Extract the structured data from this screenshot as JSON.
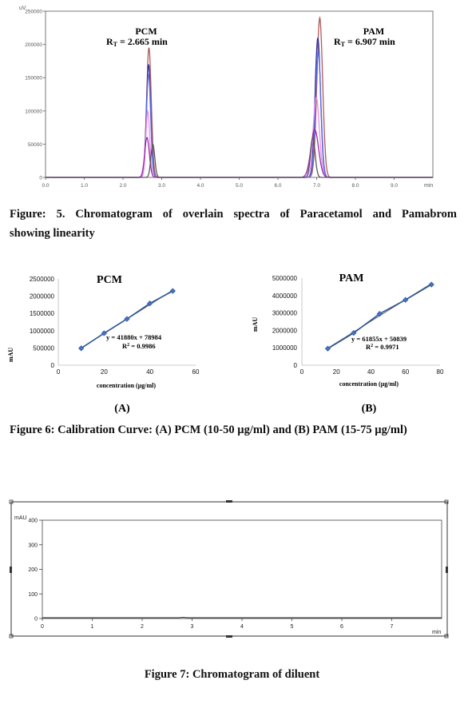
{
  "figure5": {
    "caption_line1": "Figure: 5. Chromatogram of overlain spectra of Paracetamol and Pamabrom",
    "caption_line2": "showing linearity",
    "unit_label": "uV",
    "x_unit": "min",
    "peaks": [
      {
        "name": "PCM",
        "rt_text": "R",
        "rt_sub": "T",
        "rt_value": "= 2.665 min"
      },
      {
        "name": "PAM",
        "rt_text": "R",
        "rt_sub": "T",
        "rt_value": "= 6.907 min"
      }
    ]
  },
  "figure6": {
    "panel_a_letter": "(A)",
    "panel_b_letter": "(B)",
    "caption": "Figure 6: Calibration Curve: (A) PCM (10-50 µg/ml) and (B) PAM (15-75 µg/ml)"
  },
  "figure7": {
    "y_unit": "mAU",
    "x_unit": "min",
    "caption": "Figure 7: Chromatogram of diluent"
  },
  "chart_data": [
    {
      "type": "line",
      "title": "",
      "xlabel": "min",
      "ylabel": "uV",
      "xlim": [
        0,
        10
      ],
      "ylim": [
        0,
        250000
      ],
      "xticks": [
        "0.0",
        "1.0",
        "2.0",
        "3.0",
        "4.0",
        "5.0",
        "6.0",
        "7.0",
        "8.0",
        "9.0"
      ],
      "yticks": [
        "0",
        "50000",
        "100000",
        "150000",
        "200000",
        "250000"
      ],
      "annotations": [
        "PCM",
        "RT = 2.665 min",
        "PAM",
        "RT = 6.907 min"
      ],
      "series": [
        {
          "color": "#b05a5a",
          "peaks": [
            {
              "rt": 2.67,
              "h": 195000,
              "w": 0.06
            },
            {
              "rt": 7.08,
              "h": 240000,
              "w": 0.075
            }
          ]
        },
        {
          "color": "#2d2d9c",
          "peaks": [
            {
              "rt": 2.66,
              "h": 170000,
              "w": 0.055
            },
            {
              "rt": 7.03,
              "h": 210000,
              "w": 0.07
            }
          ]
        },
        {
          "color": "#5a6ee6",
          "peaks": [
            {
              "rt": 2.66,
              "h": 155000,
              "w": 0.055
            },
            {
              "rt": 7.04,
              "h": 188000,
              "w": 0.07
            }
          ]
        },
        {
          "color": "#ee8cee",
          "peaks": [
            {
              "rt": 2.64,
              "h": 100000,
              "w": 0.05
            },
            {
              "rt": 6.99,
              "h": 120000,
              "w": 0.08
            }
          ]
        },
        {
          "color": "#9a2aa8",
          "peaks": [
            {
              "rt": 2.62,
              "h": 60000,
              "w": 0.06
            },
            {
              "rt": 6.95,
              "h": 72000,
              "w": 0.1
            }
          ]
        },
        {
          "color": "#5a5a5a",
          "peaks": [
            {
              "rt": 2.77,
              "h": 50000,
              "w": 0.05
            },
            {
              "rt": 6.9,
              "h": 60000,
              "w": 0.06
            }
          ]
        }
      ]
    },
    {
      "type": "scatter",
      "title": "PCM",
      "xlabel": "concentration (µg/ml)",
      "ylabel": "mAU",
      "xlim": [
        0,
        60
      ],
      "ylim": [
        0,
        2500000
      ],
      "xticks": [
        "0",
        "20",
        "40",
        "60"
      ],
      "yticks": [
        "0",
        "500000",
        "1000000",
        "1500000",
        "2000000",
        "2500000"
      ],
      "x": [
        10,
        20,
        30,
        40,
        50
      ],
      "y": [
        490000,
        925000,
        1340000,
        1790000,
        2150000
      ],
      "trend": {
        "slope": 41880,
        "intercept": 78984
      },
      "equation": "y = 41880x + 78984",
      "r2_label": "R",
      "r2_sup": "2",
      "r2_value": " = 0.9986"
    },
    {
      "type": "scatter",
      "title": "PAM",
      "xlabel": "concentration (µg/ml)",
      "ylabel": "mAU",
      "xlim": [
        0,
        80
      ],
      "ylim": [
        0,
        5000000
      ],
      "xticks": [
        "0",
        "20",
        "40",
        "60",
        "80"
      ],
      "yticks": [
        "0",
        "1000000",
        "2000000",
        "3000000",
        "4000000",
        "5000000"
      ],
      "x": [
        15,
        30,
        45,
        60,
        75
      ],
      "y": [
        950000,
        1850000,
        2950000,
        3750000,
        4630000
      ],
      "trend": {
        "slope": 61855,
        "intercept": 50839
      },
      "equation": "y = 61855x + 50839",
      "r2_label": "R",
      "r2_sup": "2",
      "r2_value": " = 0.9971"
    },
    {
      "type": "line",
      "title": "",
      "xlabel": "min",
      "ylabel": "mAU",
      "xlim": [
        0,
        8
      ],
      "ylim": [
        0,
        400
      ],
      "xticks": [
        "0",
        "1",
        "2",
        "3",
        "4",
        "5",
        "6",
        "7"
      ],
      "yticks": [
        "0",
        "100",
        "200",
        "300",
        "400"
      ],
      "series": [
        {
          "color": "#333333",
          "x": [
            0,
            2.75,
            2.82,
            2.9,
            8
          ],
          "y": [
            0,
            0,
            1.5,
            0,
            0
          ]
        }
      ]
    }
  ]
}
